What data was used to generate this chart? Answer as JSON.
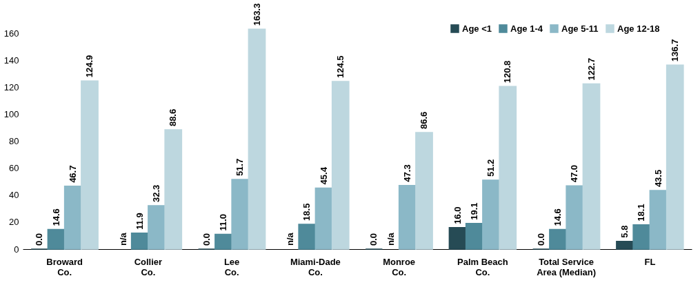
{
  "chart_data": {
    "type": "bar",
    "categories": [
      "Broward\nCo.",
      "Collier\nCo.",
      "Lee\nCo.",
      "Miami-Dade\nCo.",
      "Monroe\nCo.",
      "Palm Beach\nCo.",
      "Total Service\nArea (Median)",
      "FL"
    ],
    "series": [
      {
        "name": "Age <1",
        "color": "#264b55",
        "values": [
          0.0,
          null,
          0.0,
          null,
          0.0,
          16.0,
          0.0,
          5.8
        ],
        "value_labels": [
          "0.0",
          "n/a",
          "0.0",
          "n/a",
          "0.0",
          "16.0",
          "0.0",
          "5.8"
        ]
      },
      {
        "name": "Age 1-4",
        "color": "#4f8a9a",
        "values": [
          14.6,
          11.9,
          11.0,
          18.5,
          null,
          19.1,
          14.6,
          18.1
        ],
        "value_labels": [
          "14.6",
          "11.9",
          "11.0",
          "18.5",
          "n/a",
          "19.1",
          "14.6",
          "18.1"
        ]
      },
      {
        "name": "Age 5-11",
        "color": "#8bb8c7",
        "values": [
          46.7,
          32.3,
          51.7,
          45.4,
          47.3,
          51.2,
          47.0,
          43.5
        ],
        "value_labels": [
          "46.7",
          "32.3",
          "51.7",
          "45.4",
          "47.3",
          "51.2",
          "47.0",
          "43.5"
        ]
      },
      {
        "name": "Age 12-18",
        "color": "#bdd7df",
        "values": [
          124.9,
          88.6,
          163.3,
          124.5,
          86.6,
          120.8,
          122.7,
          136.7
        ],
        "value_labels": [
          "124.9",
          "88.6",
          "163.3",
          "124.5",
          "86.6",
          "120.8",
          "122.7",
          "136.7"
        ]
      }
    ],
    "ylim": [
      0,
      165
    ],
    "yticks": [
      0,
      20,
      40,
      60,
      80,
      100,
      120,
      140,
      160
    ],
    "grid": false,
    "legend": "top right"
  }
}
